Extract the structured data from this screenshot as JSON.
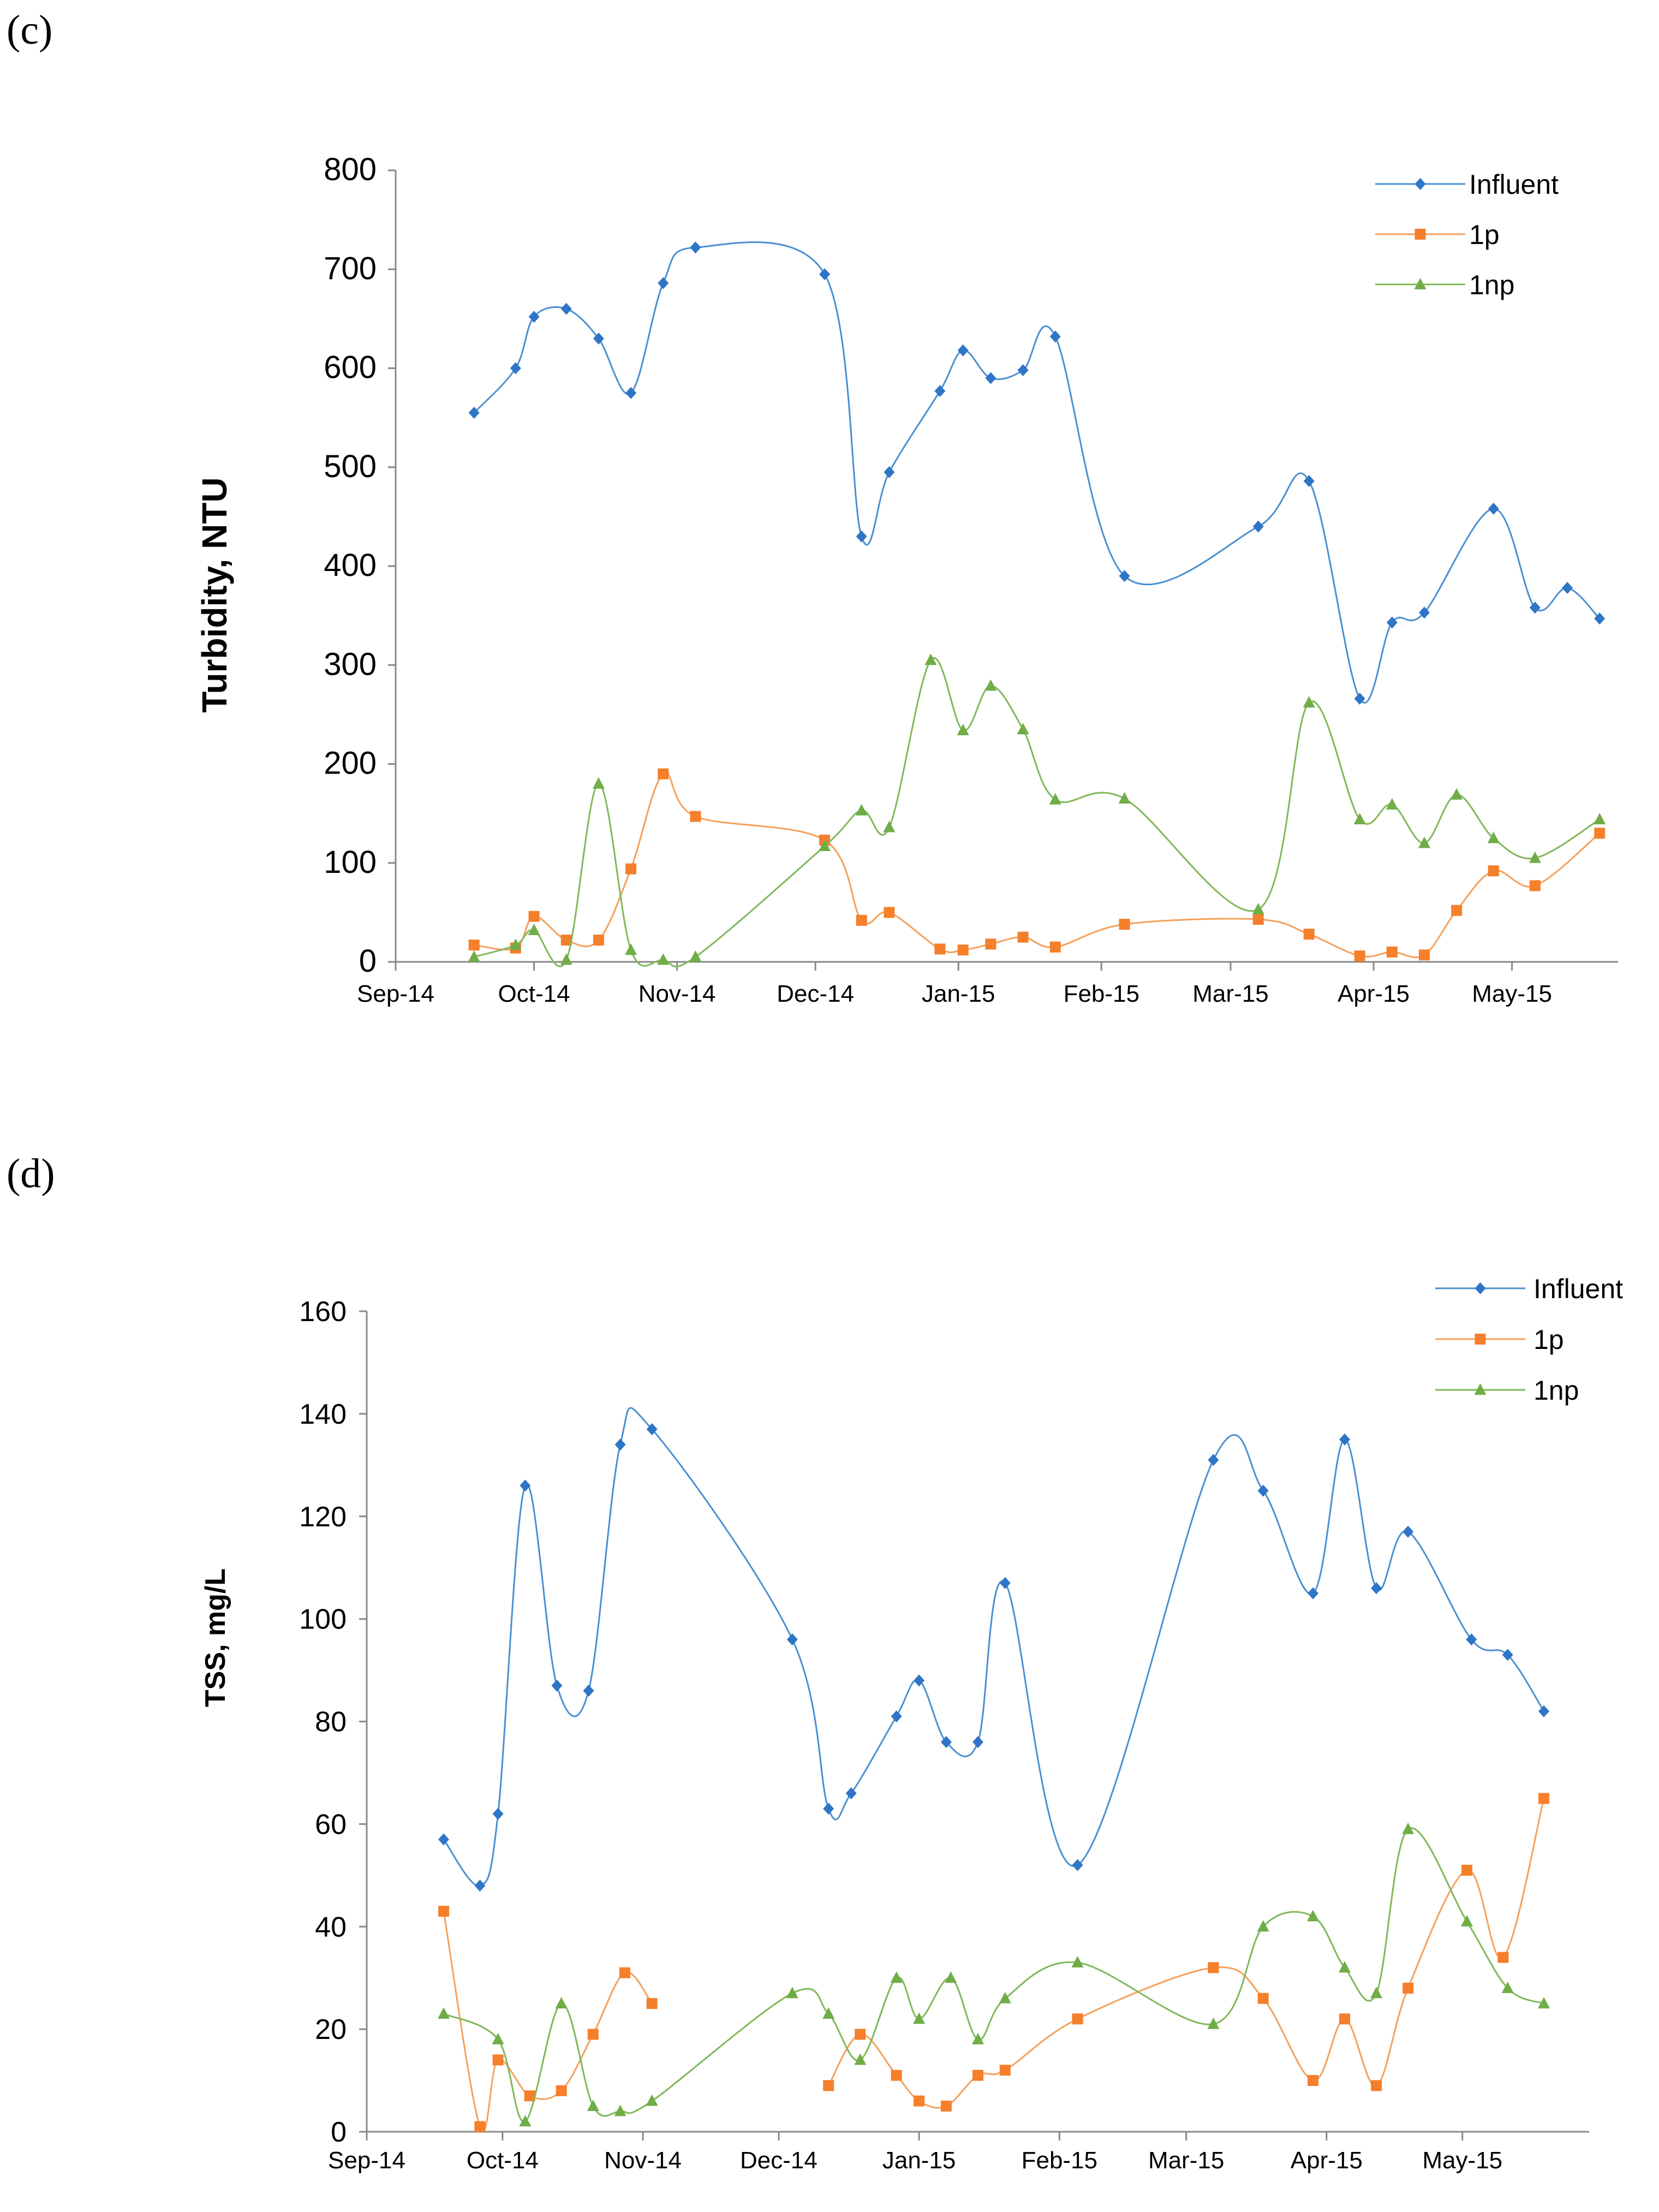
{
  "chart_data": [
    {
      "type": "line",
      "panel": "(c)",
      "title": "",
      "xlabel": "",
      "ylabel": "Turbidity, NTU",
      "ylim": [
        0,
        800
      ],
      "yticks": [
        0,
        100,
        200,
        300,
        400,
        500,
        600,
        700,
        800
      ],
      "grid": false,
      "legend": "top-right",
      "xticks": [
        {
          "label": "Sep-14",
          "day": 0
        },
        {
          "label": "Oct-14",
          "day": 30
        },
        {
          "label": "Nov-14",
          "day": 61
        },
        {
          "label": "Dec-14",
          "day": 91
        },
        {
          "label": "Jan-15",
          "day": 122
        },
        {
          "label": "Feb-15",
          "day": 153
        },
        {
          "label": "Mar-15",
          "day": 181
        },
        {
          "label": "Apr-15",
          "day": 212
        },
        {
          "label": "May-15",
          "day": 242
        }
      ],
      "xlim": [
        0,
        265
      ],
      "series": [
        {
          "name": "Influent",
          "color": "#4A8FD0",
          "markerColor": "#2E75C6",
          "marker": "diamond",
          "points": [
            [
              17,
              555
            ],
            [
              26,
              600
            ],
            [
              30,
              652
            ],
            [
              37,
              660
            ],
            [
              44,
              630
            ],
            [
              51,
              575
            ],
            [
              58,
              686
            ],
            [
              65,
              722
            ],
            [
              93,
              695
            ],
            [
              101,
              430
            ],
            [
              107,
              495
            ],
            [
              118,
              577
            ],
            [
              123,
              618
            ],
            [
              129,
              590
            ],
            [
              136,
              598
            ],
            [
              143,
              632
            ],
            [
              158,
              390
            ],
            [
              187,
              440
            ],
            [
              198,
              486
            ],
            [
              209,
              266
            ],
            [
              216,
              343
            ],
            [
              223,
              353
            ],
            [
              238,
              458
            ],
            [
              247,
              358
            ],
            [
              254,
              378
            ],
            [
              261,
              347
            ]
          ]
        },
        {
          "name": "1p",
          "color": "#F5A05A",
          "markerColor": "#F57F2A",
          "marker": "square",
          "points": [
            [
              17,
              17
            ],
            [
              26,
              14
            ],
            [
              30,
              46
            ],
            [
              37,
              22
            ],
            [
              44,
              22
            ],
            [
              51,
              94
            ],
            [
              58,
              190
            ],
            [
              65,
              147
            ],
            [
              93,
              123
            ],
            [
              101,
              42
            ],
            [
              107,
              50
            ],
            [
              118,
              13
            ],
            [
              123,
              12
            ],
            [
              129,
              18
            ],
            [
              136,
              25
            ],
            [
              143,
              15
            ],
            [
              158,
              38
            ],
            [
              187,
              43
            ],
            [
              198,
              28
            ],
            [
              209,
              6
            ],
            [
              216,
              10
            ],
            [
              223,
              7
            ],
            [
              230,
              52
            ],
            [
              238,
              92
            ],
            [
              247,
              77
            ],
            [
              261,
              130
            ]
          ]
        },
        {
          "name": "1np",
          "color": "#7FB85A",
          "markerColor": "#70AD47",
          "marker": "triangle",
          "points": [
            [
              17,
              5
            ],
            [
              26,
              17
            ],
            [
              30,
              32
            ],
            [
              37,
              2
            ],
            [
              44,
              180
            ],
            [
              51,
              12
            ],
            [
              58,
              2
            ],
            [
              65,
              5
            ],
            [
              93,
              117
            ],
            [
              101,
              153
            ],
            [
              107,
              136
            ],
            [
              116,
              305
            ],
            [
              123,
              234
            ],
            [
              129,
              279
            ],
            [
              136,
              235
            ],
            [
              143,
              164
            ],
            [
              158,
              165
            ],
            [
              187,
              53
            ],
            [
              198,
              262
            ],
            [
              209,
              144
            ],
            [
              216,
              159
            ],
            [
              223,
              120
            ],
            [
              230,
              169
            ],
            [
              238,
              125
            ],
            [
              247,
              105
            ],
            [
              261,
              144
            ]
          ]
        }
      ]
    },
    {
      "type": "line",
      "panel": "(d)",
      "title": "",
      "xlabel": "",
      "ylabel": "TSS, mg/L",
      "ylim": [
        0,
        160
      ],
      "yticks": [
        0,
        20,
        40,
        60,
        80,
        100,
        120,
        140,
        160
      ],
      "grid": false,
      "legend": "top-right",
      "xticks": [
        {
          "label": "Sep-14",
          "day": 0
        },
        {
          "label": "Oct-14",
          "day": 30
        },
        {
          "label": "Nov-14",
          "day": 61
        },
        {
          "label": "Dec-14",
          "day": 91
        },
        {
          "label": "Jan-15",
          "day": 122
        },
        {
          "label": "Feb-15",
          "day": 153
        },
        {
          "label": "Mar-15",
          "day": 181
        },
        {
          "label": "Apr-15",
          "day": 212
        },
        {
          "label": "May-15",
          "day": 242
        }
      ],
      "xlim": [
        0,
        270
      ],
      "series": [
        {
          "name": "Influent",
          "color": "#4A8FD0",
          "markerColor": "#2E75C6",
          "marker": "diamond",
          "points": [
            [
              17,
              57
            ],
            [
              25,
              48
            ],
            [
              29,
              62
            ],
            [
              35,
              126
            ],
            [
              42,
              87
            ],
            [
              49,
              86
            ],
            [
              56,
              134
            ],
            [
              63,
              137
            ],
            [
              94,
              96
            ],
            [
              102,
              63
            ],
            [
              107,
              66
            ],
            [
              117,
              81
            ],
            [
              122,
              88
            ],
            [
              128,
              76
            ],
            [
              135,
              76
            ],
            [
              141,
              107
            ],
            [
              157,
              52
            ],
            [
              187,
              131
            ],
            [
              198,
              125
            ],
            [
              209,
              105
            ],
            [
              216,
              135
            ],
            [
              223,
              106
            ],
            [
              230,
              117
            ],
            [
              244,
              96
            ],
            [
              252,
              93
            ],
            [
              260,
              82
            ]
          ]
        },
        {
          "name": "1p",
          "color": "#F5A05A",
          "markerColor": "#F57F2A",
          "marker": "square",
          "points": [
            [
              17,
              43
            ],
            [
              25,
              1
            ],
            [
              29,
              14
            ],
            [
              36,
              7
            ],
            [
              43,
              8
            ],
            [
              50,
              19
            ],
            [
              57,
              31
            ],
            [
              63,
              25
            ],
            [
              null,
              null
            ],
            [
              102,
              9
            ],
            [
              109,
              19
            ],
            [
              117,
              11
            ],
            [
              122,
              6
            ],
            [
              128,
              5
            ],
            [
              135,
              11
            ],
            [
              141,
              12
            ],
            [
              157,
              22
            ],
            [
              187,
              32
            ],
            [
              198,
              26
            ],
            [
              209,
              10
            ],
            [
              216,
              22
            ],
            [
              223,
              9
            ],
            [
              230,
              28
            ],
            [
              243,
              51
            ],
            [
              251,
              34
            ],
            [
              260,
              65
            ]
          ]
        },
        {
          "name": "1np",
          "color": "#7FB85A",
          "markerColor": "#70AD47",
          "marker": "triangle",
          "points": [
            [
              17,
              23
            ],
            [
              29,
              18
            ],
            [
              35,
              2
            ],
            [
              43,
              25
            ],
            [
              50,
              5
            ],
            [
              56,
              4
            ],
            [
              63,
              6
            ],
            [
              94,
              27
            ],
            [
              102,
              23
            ],
            [
              109,
              14
            ],
            [
              117,
              30
            ],
            [
              122,
              22
            ],
            [
              129,
              30
            ],
            [
              135,
              18
            ],
            [
              141,
              26
            ],
            [
              157,
              33
            ],
            [
              187,
              21
            ],
            [
              198,
              40
            ],
            [
              209,
              42
            ],
            [
              216,
              32
            ],
            [
              223,
              27
            ],
            [
              230,
              59
            ],
            [
              243,
              41
            ],
            [
              252,
              28
            ],
            [
              260,
              25
            ]
          ]
        }
      ]
    }
  ]
}
